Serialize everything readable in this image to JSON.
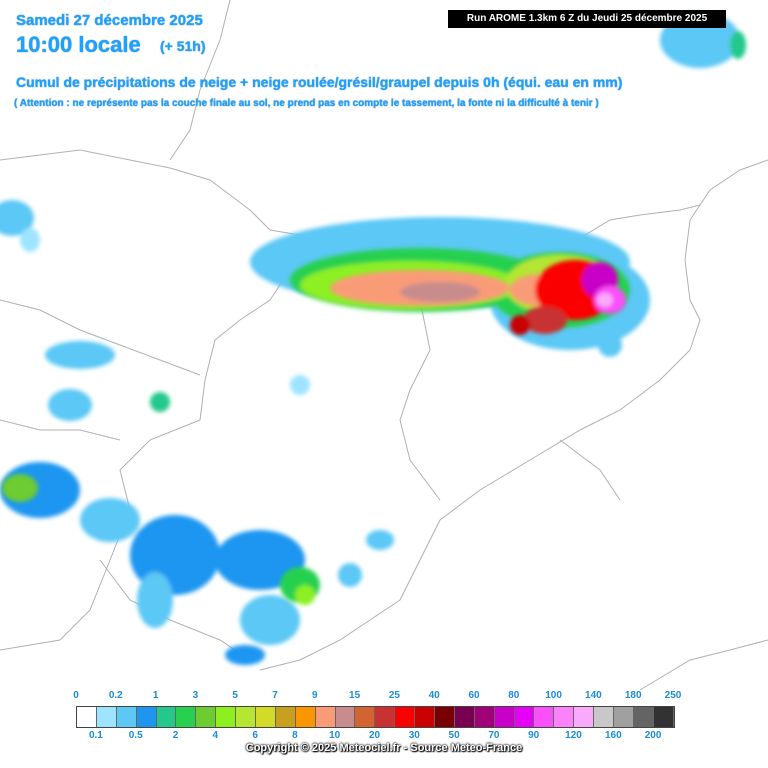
{
  "header": {
    "date": "Samedi 27 décembre 2025",
    "time": "10:00 locale",
    "lead": "(+ 51h)",
    "title": "Cumul de précipitations de neige + neige roulée/grésil/graupel depuis 0h (équi. eau en mm)",
    "note": "( Attention : ne représente pas la couche finale au sol, ne prend pas en compte le tassement, la fonte ni la difficulté à tenir )"
  },
  "run_label": "Run AROME 1.3km 6 Z du Jeudi 25 décembre 2025",
  "legend": {
    "top_labels": [
      "0",
      "0.2",
      "1",
      "3",
      "5",
      "7",
      "9",
      "15",
      "25",
      "40",
      "60",
      "80",
      "100",
      "140",
      "180",
      "250"
    ],
    "bottom_labels": [
      "0.1",
      "0.5",
      "2",
      "4",
      "6",
      "8",
      "10",
      "20",
      "30",
      "50",
      "70",
      "90",
      "120",
      "160",
      "200"
    ],
    "colors": [
      "#ffffff",
      "#9ee4ff",
      "#5bc8f5",
      "#1e96f0",
      "#24c88c",
      "#28d050",
      "#6ccc32",
      "#8cf020",
      "#b4e632",
      "#d2dc28",
      "#c8a01e",
      "#fa9600",
      "#fa9b78",
      "#c88c8c",
      "#d26432",
      "#c83232",
      "#fa0000",
      "#c80000",
      "#780000",
      "#780050",
      "#a00078",
      "#c800c8",
      "#e600f5",
      "#fa50fa",
      "#fa82fa",
      "#faaafa",
      "#c8c8c8",
      "#a0a0a0",
      "#646464",
      "#323232"
    ]
  },
  "copyright": "Copyright © 2025 Meteociel.fr - Source Meteo-France"
}
